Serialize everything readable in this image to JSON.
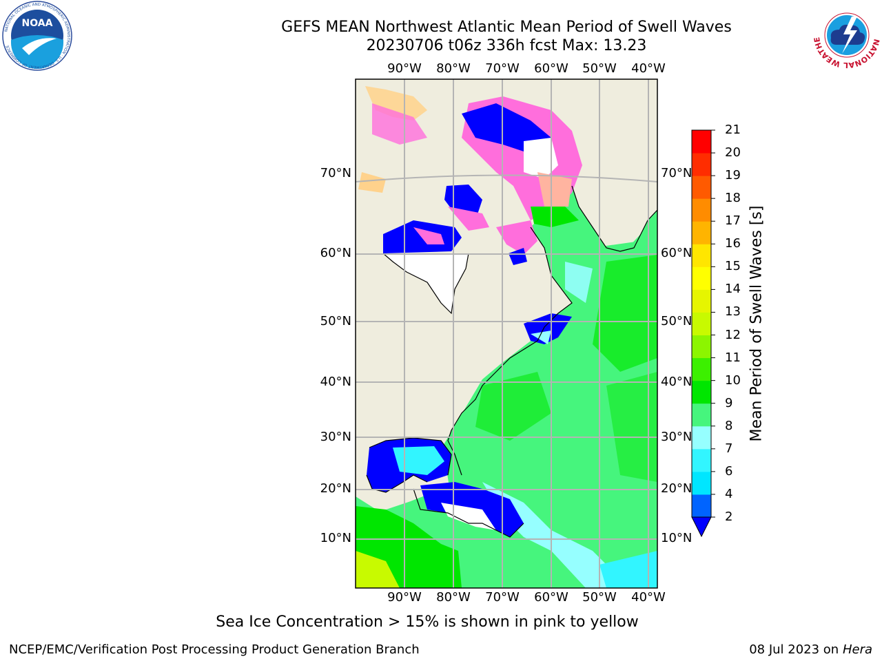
{
  "title": {
    "line1": "GEFS MEAN Northwest Atlantic Mean Period of Swell Waves",
    "line2": "20230706 t06z 336h fcst   Max: 13.23"
  },
  "map": {
    "lon_labels": [
      "90°W",
      "80°W",
      "70°W",
      "60°W",
      "50°W",
      "40°W"
    ],
    "lat_labels": [
      "70°N",
      "60°N",
      "50°N",
      "40°N",
      "30°N",
      "20°N",
      "10°N"
    ],
    "land_color": "#efedde",
    "grid_color": "#b4b4b4"
  },
  "colorbar": {
    "title": "Mean Period of Swell Waves [s]",
    "ticks": [
      "2",
      "4",
      "6",
      "7",
      "8",
      "9",
      "10",
      "11",
      "12",
      "13",
      "14",
      "15",
      "16",
      "17",
      "18",
      "19",
      "20",
      "21"
    ],
    "bin_colors": [
      "#0064ff",
      "#00e6ff",
      "#32f5ff",
      "#96ffff",
      "#46f57d",
      "#00e600",
      "#3cf000",
      "#8cf500",
      "#c8fa00",
      "#e6f500",
      "#ffff00",
      "#ffe600",
      "#ffb400",
      "#ff8c00",
      "#ff5a00",
      "#ff2d00",
      "#ff0000"
    ],
    "under_color": "#0000ff"
  },
  "note": "Sea Ice Concentration > 15% is shown in pink to yellow",
  "footer": {
    "left": "NCEP/EMC/Verification Post Processing Product Generation Branch",
    "right_date": "08 Jul 2023 on",
    "right_host": "Hera"
  },
  "logos": {
    "left": "NOAA",
    "right": "NATIONAL WEATHER SERVICE"
  }
}
